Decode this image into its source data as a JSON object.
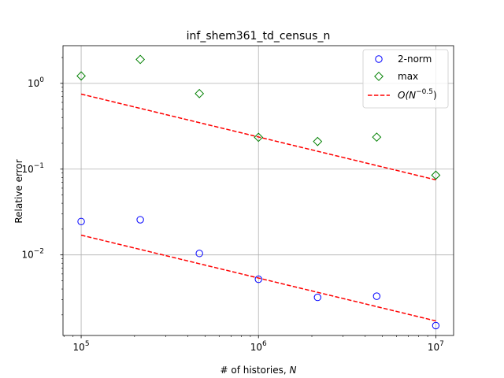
{
  "chart_data": {
    "type": "scatter",
    "title": "inf_shem361_td_census_n",
    "xlabel_prefix": "# of histories, ",
    "xlabel_var": "N",
    "ylabel": "Relative error",
    "xscale": "log",
    "yscale": "log",
    "xlim": [
      79000,
      12600000
    ],
    "ylim": [
      0.00115,
      2.75
    ],
    "grid": true,
    "legend_position": "top-right",
    "x_ticks": [
      {
        "value": 100000,
        "base": "10",
        "exp": "5"
      },
      {
        "value": 1000000,
        "base": "10",
        "exp": "6"
      },
      {
        "value": 10000000,
        "base": "10",
        "exp": "7"
      }
    ],
    "y_ticks": [
      {
        "value": 0.01,
        "base": "10",
        "exp": "−2"
      },
      {
        "value": 0.1,
        "base": "10",
        "exp": "−1"
      },
      {
        "value": 1,
        "base": "10",
        "exp": "0"
      }
    ],
    "series": [
      {
        "name": "2-norm",
        "marker": "circle",
        "color": "#0000ff",
        "x": [
          100000,
          215443,
          464159,
          1000000,
          2154435,
          4641589,
          10000000
        ],
        "y": [
          0.0245,
          0.0257,
          0.0104,
          0.0052,
          0.0032,
          0.0033,
          0.0015
        ]
      },
      {
        "name": "max",
        "marker": "diamond",
        "color": "#008000",
        "x": [
          100000,
          215443,
          464159,
          1000000,
          2154435,
          4641589,
          10000000
        ],
        "y": [
          1.22,
          1.9,
          0.76,
          0.235,
          0.21,
          0.236,
          0.085
        ]
      }
    ],
    "reference_lines": [
      {
        "x": [
          100000,
          10000000
        ],
        "y": [
          0.017,
          0.0017
        ],
        "color": "#ff0000",
        "style": "dashed"
      },
      {
        "x": [
          100000,
          10000000
        ],
        "y": [
          0.75,
          0.075
        ],
        "color": "#ff0000",
        "style": "dashed"
      }
    ],
    "legend": [
      {
        "label": "2-norm",
        "marker": "circle",
        "color": "#0000ff"
      },
      {
        "label": "max",
        "marker": "diamond",
        "color": "#008000"
      },
      {
        "label_prefix": "O(N",
        "label_exp": "−0.5",
        "label_suffix": ")",
        "marker": "dashed-line",
        "color": "#ff0000"
      }
    ]
  }
}
